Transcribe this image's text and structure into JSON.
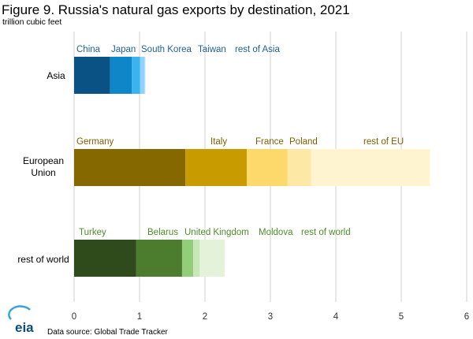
{
  "chart_data": {
    "type": "bar",
    "orientation": "horizontal",
    "stacked": true,
    "title": "Figure 9.  Russia's natural gas exports by destination, 2021",
    "subtitle": "trillion cubic feet",
    "xlim": [
      0,
      6
    ],
    "x_ticks": [
      "0",
      "1",
      "2",
      "3",
      "4",
      "5",
      "6"
    ],
    "grid": "vertical",
    "categories": [
      {
        "label": "Asia",
        "label_color": "#1f6391",
        "segments": [
          {
            "name": "China",
            "value": 0.55,
            "color": "#0a5283"
          },
          {
            "name": "Japan",
            "value": 0.33,
            "color": "#0e86c8"
          },
          {
            "name": "South Korea",
            "value": 0.13,
            "color": "#3cb3ef"
          },
          {
            "name": "Taiwan",
            "value": 0.07,
            "color": "#8fd3f8"
          },
          {
            "name": "rest of Asia",
            "value": 0.01,
            "color": "#cbe9fb"
          }
        ]
      },
      {
        "label": "European Union",
        "label_color": "#7a5f00",
        "segments": [
          {
            "name": "Germany",
            "value": 1.7,
            "color": "#856800"
          },
          {
            "name": "Italy",
            "value": 0.94,
            "color": "#c89b00"
          },
          {
            "name": "France",
            "value": 0.62,
            "color": "#fcd96a"
          },
          {
            "name": "Poland",
            "value": 0.36,
            "color": "#fde8a6"
          },
          {
            "name": "rest of EU",
            "value": 1.82,
            "color": "#fef4d0"
          }
        ]
      },
      {
        "label": "rest of world",
        "label_color": "#4d8a29",
        "segments": [
          {
            "name": "Turkey",
            "value": 0.95,
            "color": "#2f4b1c"
          },
          {
            "name": "Belarus",
            "value": 0.7,
            "color": "#4c7c2e"
          },
          {
            "name": "United Kingdom",
            "value": 0.17,
            "color": "#94cd79"
          },
          {
            "name": "Moldova",
            "value": 0.1,
            "color": "#c8e7b8"
          },
          {
            "name": "rest of world",
            "value": 0.38,
            "color": "#e3f2d9"
          }
        ]
      }
    ]
  },
  "logo_text": "eia",
  "source_text": "Data source:  Global Trade Tracker"
}
